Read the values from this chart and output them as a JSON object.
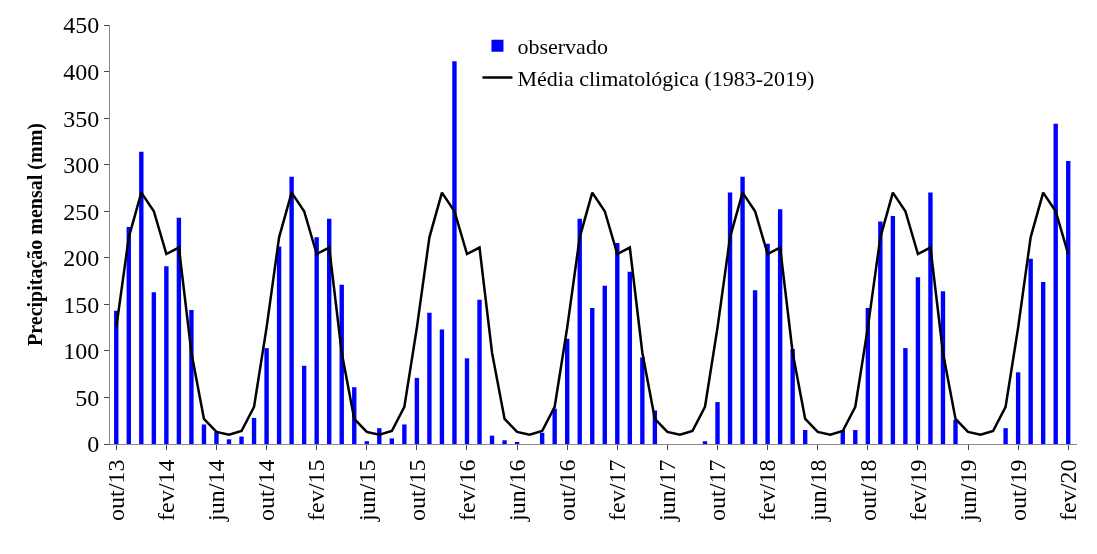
{
  "chart_data": {
    "type": "bar",
    "ylabel": "Precipitação mensal (mm)",
    "categories": [
      "out/13",
      null,
      null,
      null,
      "fev/14",
      null,
      null,
      null,
      "jun/14",
      null,
      null,
      null,
      "out/14",
      null,
      null,
      null,
      "fev/15",
      null,
      null,
      null,
      "jun/15",
      null,
      null,
      null,
      "out/15",
      null,
      null,
      null,
      "fev/16",
      null,
      null,
      null,
      "jun/16",
      null,
      null,
      null,
      "out/16",
      null,
      null,
      null,
      "fev/17",
      null,
      null,
      null,
      "jun/17",
      null,
      null,
      null,
      "out/17",
      null,
      null,
      null,
      "fev/18",
      null,
      null,
      null,
      "jun/18",
      null,
      null,
      null,
      "out/18",
      null,
      null,
      null,
      "fev/19",
      null,
      null,
      null,
      "jun/19",
      null,
      null,
      null,
      "out/19",
      null,
      null,
      null,
      "fev/20"
    ],
    "series": [
      {
        "name": "observado",
        "color": "#0000ff",
        "values": [
          143,
          233,
          314,
          163,
          191,
          243,
          144,
          21,
          13,
          5,
          8,
          28,
          103,
          212,
          287,
          84,
          222,
          242,
          171,
          61,
          3,
          17,
          6,
          21,
          71,
          141,
          123,
          411,
          92,
          155,
          9,
          4,
          2,
          null,
          12,
          38,
          113,
          242,
          146,
          170,
          216,
          185,
          93,
          36,
          null,
          null,
          null,
          3,
          45,
          270,
          287,
          165,
          215,
          252,
          102,
          15,
          null,
          null,
          15,
          15,
          146,
          239,
          245,
          103,
          179,
          270,
          164,
          26,
          null,
          null,
          null,
          17,
          77,
          199,
          174,
          344,
          304
        ]
      },
      {
        "name": "Média climatológica (1983-2019)",
        "type": "line",
        "color": "#000000",
        "values": [
          125,
          222,
          270,
          250,
          204,
          211,
          98,
          27,
          13,
          10,
          14,
          40,
          125,
          222,
          270,
          250,
          204,
          211,
          98,
          27,
          13,
          10,
          14,
          40,
          125,
          222,
          270,
          250,
          204,
          211,
          98,
          27,
          13,
          10,
          14,
          40,
          125,
          222,
          270,
          250,
          204,
          211,
          98,
          27,
          13,
          10,
          14,
          40,
          125,
          222,
          270,
          250,
          204,
          211,
          98,
          27,
          13,
          10,
          14,
          40,
          125,
          222,
          270,
          250,
          204,
          211,
          98,
          27,
          13,
          10,
          14,
          40,
          125,
          222,
          270,
          250,
          204
        ]
      }
    ],
    "ylim": [
      0,
      450
    ],
    "yticks": [
      0,
      50,
      100,
      150,
      200,
      250,
      300,
      350,
      400,
      450
    ],
    "legend": "top",
    "marker": "none",
    "line_style": "solid"
  }
}
